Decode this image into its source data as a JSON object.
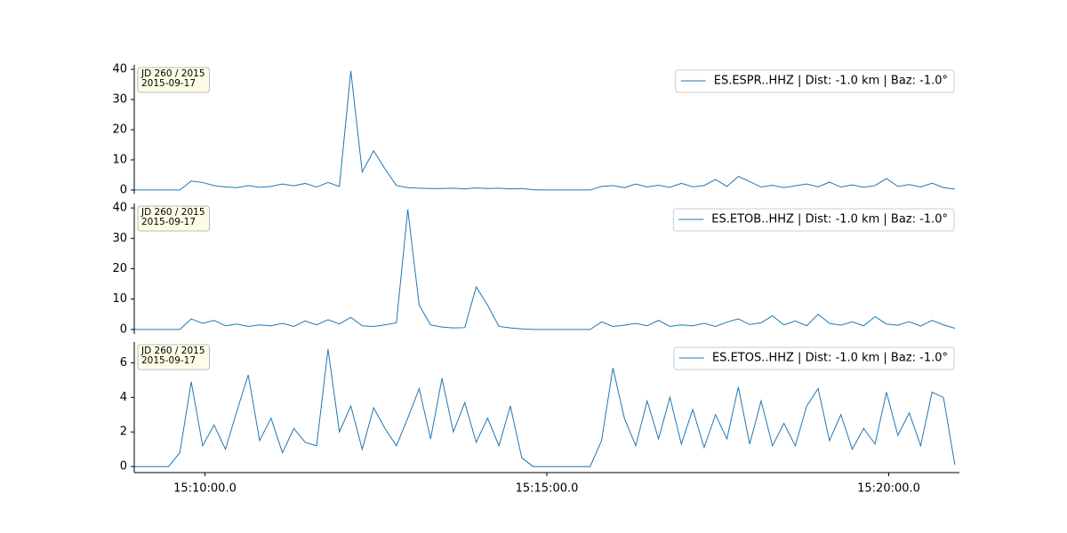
{
  "chart_data": [
    {
      "type": "line",
      "annotations": [
        "JD 260 / 2015",
        "2015-09-17"
      ],
      "legend": "upper right",
      "x": [
        54538,
        54548,
        54558,
        54568,
        54578,
        54588,
        54598,
        54608,
        54618,
        54628,
        54638,
        54648,
        54658,
        54668,
        54678,
        54688,
        54698,
        54708,
        54718,
        54728,
        54738,
        54748,
        54758,
        54768,
        54778,
        54788,
        54798,
        54808,
        54818,
        54828,
        54838,
        54848,
        54858,
        54868,
        54878,
        54888,
        54898,
        54908,
        54918,
        54928,
        54938,
        54948,
        54958,
        54968,
        54978,
        54988,
        54998,
        55008,
        55018,
        55028,
        55038,
        55048,
        55058,
        55068,
        55078,
        55088,
        55098,
        55108,
        55118,
        55128,
        55138,
        55148,
        55158,
        55168,
        55178,
        55188,
        55198,
        55208,
        55218,
        55228,
        55238,
        55248,
        55258
      ],
      "series": [
        {
          "name": "ES.ESPR..HHZ | Dist: -1.0 km | Baz: -1.0°",
          "color": "#1f77b4",
          "values": [
            0,
            0,
            0,
            0,
            0,
            3,
            2.5,
            1.5,
            1,
            0.8,
            1.5,
            0.9,
            1.2,
            2,
            1.4,
            2.2,
            1,
            2.5,
            1.2,
            39.5,
            6,
            13,
            7,
            1.5,
            0.8,
            0.6,
            0.5,
            0.5,
            0.6,
            0.4,
            0.7,
            0.5,
            0.6,
            0.4,
            0.5,
            0.1,
            0,
            0,
            0,
            0,
            0,
            1.2,
            1.5,
            0.8,
            2,
            1,
            1.6,
            0.9,
            2.2,
            1.1,
            1.5,
            3.5,
            1.2,
            4.5,
            2.8,
            1,
            1.6,
            0.8,
            1.4,
            2,
            1.1,
            2.6,
            1,
            1.7,
            0.9,
            1.5,
            3.8,
            1.2,
            1.8,
            1,
            2.3,
            0.8,
            0.3
          ]
        }
      ],
      "xlim": [
        54538,
        55262
      ],
      "ylim": [
        -1.2,
        41.5
      ],
      "yticks": [
        0,
        10,
        20,
        30,
        40
      ]
    },
    {
      "type": "line",
      "annotations": [
        "JD 260 / 2015",
        "2015-09-17"
      ],
      "legend": "upper right",
      "x": [
        54538,
        54548,
        54558,
        54568,
        54578,
        54588,
        54598,
        54608,
        54618,
        54628,
        54638,
        54648,
        54658,
        54668,
        54678,
        54688,
        54698,
        54708,
        54718,
        54728,
        54738,
        54748,
        54758,
        54768,
        54778,
        54788,
        54798,
        54808,
        54818,
        54828,
        54838,
        54848,
        54858,
        54868,
        54878,
        54888,
        54898,
        54908,
        54918,
        54928,
        54938,
        54948,
        54958,
        54968,
        54978,
        54988,
        54998,
        55008,
        55018,
        55028,
        55038,
        55048,
        55058,
        55068,
        55078,
        55088,
        55098,
        55108,
        55118,
        55128,
        55138,
        55148,
        55158,
        55168,
        55178,
        55188,
        55198,
        55208,
        55218,
        55228,
        55238,
        55248,
        55258
      ],
      "series": [
        {
          "name": "ES.ETOB..HHZ | Dist: -1.0 km | Baz: -1.0°",
          "color": "#1f77b4",
          "values": [
            0,
            0,
            0,
            0,
            0,
            3.5,
            2,
            3,
            1.2,
            1.8,
            1,
            1.5,
            1.2,
            2,
            1,
            2.8,
            1.5,
            3.2,
            1.8,
            4,
            1.2,
            1,
            1.5,
            2.2,
            39.5,
            8,
            1.5,
            0.8,
            0.5,
            0.6,
            14,
            8,
            1,
            0.5,
            0.2,
            0,
            0,
            0,
            0,
            0,
            0,
            2.5,
            1,
            1.4,
            2,
            1.2,
            3,
            1,
            1.5,
            1.2,
            2,
            1,
            2.4,
            3.5,
            1.6,
            2.2,
            4.5,
            1.5,
            2.8,
            1.2,
            5,
            2,
            1.4,
            2.5,
            1.2,
            4.2,
            1.8,
            1.4,
            2.6,
            1.1,
            3,
            1.5,
            0.4
          ]
        }
      ],
      "xlim": [
        54538,
        55262
      ],
      "ylim": [
        -1.5,
        41.5
      ],
      "yticks": [
        0,
        10,
        20,
        30,
        40
      ]
    },
    {
      "type": "line",
      "annotations": [
        "JD 260 / 2015",
        "2015-09-17"
      ],
      "legend": "upper right",
      "x": [
        54538,
        54548,
        54558,
        54568,
        54578,
        54588,
        54598,
        54608,
        54618,
        54628,
        54638,
        54648,
        54658,
        54668,
        54678,
        54688,
        54698,
        54708,
        54718,
        54728,
        54738,
        54748,
        54758,
        54768,
        54778,
        54788,
        54798,
        54808,
        54818,
        54828,
        54838,
        54848,
        54858,
        54868,
        54878,
        54888,
        54898,
        54908,
        54918,
        54928,
        54938,
        54948,
        54958,
        54968,
        54978,
        54988,
        54998,
        55008,
        55018,
        55028,
        55038,
        55048,
        55058,
        55068,
        55078,
        55088,
        55098,
        55108,
        55118,
        55128,
        55138,
        55148,
        55158,
        55168,
        55178,
        55188,
        55198,
        55208,
        55218,
        55228,
        55238,
        55248,
        55258
      ],
      "series": [
        {
          "name": "ES.ETOS..HHZ | Dist: -1.0 km | Baz: -1.0°",
          "color": "#1f77b4",
          "values": [
            0,
            0,
            0,
            0,
            0.8,
            4.9,
            1.2,
            2.4,
            1,
            3.2,
            5.3,
            1.5,
            2.8,
            0.8,
            2.2,
            1.4,
            1.2,
            6.8,
            2,
            3.5,
            1,
            3.4,
            2.2,
            1.2,
            2.8,
            4.5,
            1.6,
            5.1,
            2,
            3.7,
            1.4,
            2.8,
            1.2,
            3.5,
            0.5,
            0,
            0,
            0,
            0,
            0,
            0,
            1.5,
            5.7,
            2.8,
            1.2,
            3.8,
            1.6,
            4,
            1.3,
            3.3,
            1.1,
            3,
            1.6,
            4.6,
            1.3,
            3.8,
            1.2,
            2.5,
            1.2,
            3.5,
            4.5,
            1.5,
            3,
            1,
            2.2,
            1.3,
            4.3,
            1.8,
            3.1,
            1.2,
            4.3,
            4,
            0.1
          ]
        }
      ],
      "xlim": [
        54538,
        55262
      ],
      "ylim": [
        -0.35,
        7.2
      ],
      "yticks": [
        0,
        2,
        4,
        6
      ],
      "xticks": [
        {
          "value": 54600,
          "label": "15:10:00.0"
        },
        {
          "value": 54900,
          "label": "15:15:00.0"
        },
        {
          "value": 55200,
          "label": "15:20:00.0"
        }
      ]
    }
  ]
}
